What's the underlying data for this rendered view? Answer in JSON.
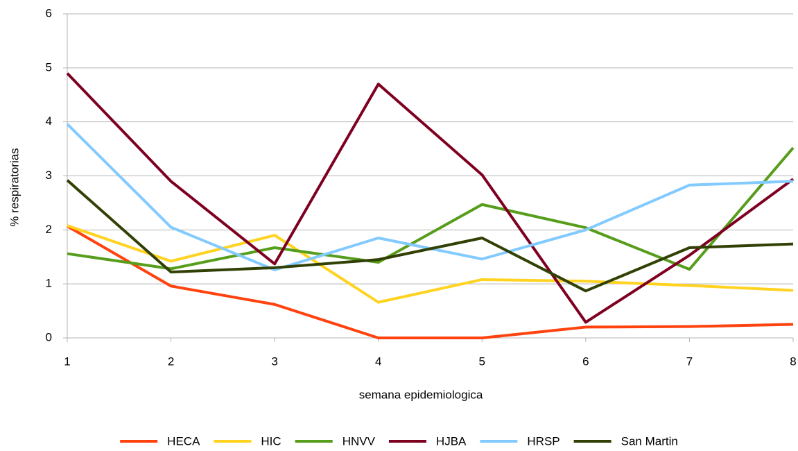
{
  "chart_data": {
    "type": "line",
    "x_label": "semana epidemiologica",
    "y_label": "% respiratorias",
    "x": [
      1,
      2,
      3,
      4,
      5,
      6,
      7,
      8
    ],
    "xlim": [
      1,
      8
    ],
    "xticks": [
      1,
      2,
      3,
      4,
      5,
      6,
      7,
      8
    ],
    "ylim": [
      0,
      6
    ],
    "yticks": [
      0,
      1,
      2,
      3,
      4,
      5,
      6
    ],
    "grid": true,
    "legend": "bottom",
    "series": [
      {
        "name": "HECA",
        "color": "#ff420e",
        "values": [
          2.07,
          0.96,
          0.62,
          0,
          0,
          0.2,
          0.21,
          0.25
        ]
      },
      {
        "name": "HIC",
        "color": "#ffd320",
        "values": [
          2.08,
          1.42,
          1.9,
          0.66,
          1.08,
          1.05,
          0.97,
          0.88
        ]
      },
      {
        "name": "HNVV",
        "color": "#579d1c",
        "values": [
          1.56,
          1.28,
          1.67,
          1.4,
          2.47,
          2.04,
          1.27,
          3.52
        ]
      },
      {
        "name": "HJBA",
        "color": "#7e0021",
        "values": [
          4.9,
          2.9,
          1.37,
          4.7,
          3.02,
          0.29,
          1.53,
          2.94
        ]
      },
      {
        "name": "HRSP",
        "color": "#83caff",
        "values": [
          3.96,
          2.05,
          1.26,
          1.85,
          1.46,
          2.0,
          2.83,
          2.9
        ]
      },
      {
        "name": "San Martin",
        "color": "#314004",
        "values": [
          2.92,
          1.22,
          1.3,
          1.45,
          1.85,
          0.87,
          1.67,
          1.74
        ]
      }
    ]
  }
}
